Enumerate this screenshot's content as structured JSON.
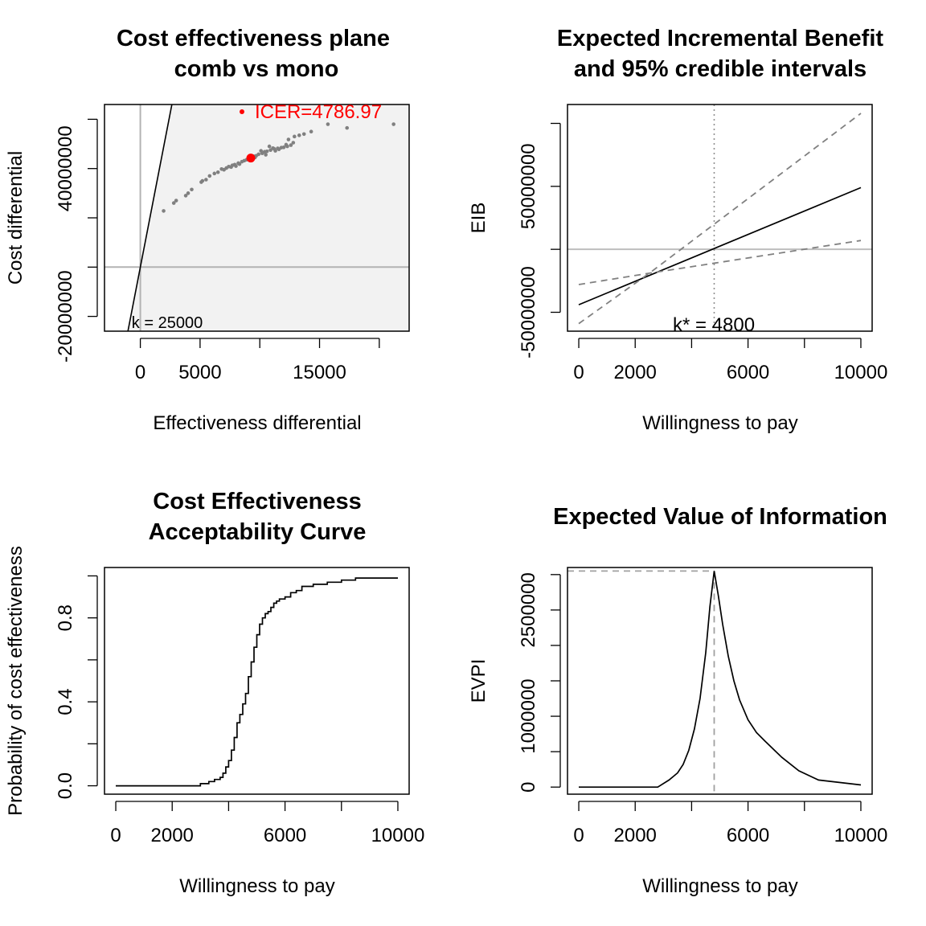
{
  "chart_data": [
    {
      "id": "ce_plane",
      "type": "scatter",
      "title": [
        "Cost effectiveness plane",
        "comb vs mono"
      ],
      "xlabel": "Effectiveness differential",
      "ylabel": "Cost differential",
      "xlim": [
        -3000,
        22500
      ],
      "ylim": [
        -26000000,
        66000000
      ],
      "xticks": [
        0,
        5000,
        15000
      ],
      "xticks_unlabeled": [
        10000,
        20000
      ],
      "yticks": [
        -20000000,
        40000000
      ],
      "yticks_unlabeled": [
        0,
        20000000,
        60000000
      ],
      "ytick_labels": [
        "-20000000",
        "40000000"
      ],
      "region_fill": "#f2f2f2",
      "point_color": "#808080",
      "icer_color": "#ff0000",
      "wtp_label": "k = 25000",
      "icer_label": "ICER=4786.97",
      "icer_point": {
        "x": 9246,
        "y": 44262000
      },
      "wtp_line": {
        "k": 25000
      },
      "points": [
        [
          1950,
          22800000
        ],
        [
          2800,
          26000000
        ],
        [
          3000,
          27000000
        ],
        [
          3800,
          29000000
        ],
        [
          4000,
          30000000
        ],
        [
          4300,
          31500000
        ],
        [
          5100,
          34500000
        ],
        [
          5200,
          35000000
        ],
        [
          5500,
          35500000
        ],
        [
          5800,
          37000000
        ],
        [
          6200,
          38000000
        ],
        [
          6500,
          38500000
        ],
        [
          7000,
          39500000
        ],
        [
          7400,
          40800000
        ],
        [
          7700,
          41300000
        ],
        [
          7900,
          41600000
        ],
        [
          8200,
          42200000
        ],
        [
          8500,
          42800000
        ],
        [
          8700,
          43200000
        ],
        [
          8900,
          43600000
        ],
        [
          9100,
          44000000
        ],
        [
          9300,
          44800000
        ],
        [
          9500,
          45000000
        ],
        [
          9700,
          45200000
        ],
        [
          9900,
          45800000
        ],
        [
          10200,
          46200000
        ],
        [
          10400,
          46800000
        ],
        [
          10600,
          47000000
        ],
        [
          10900,
          47500000
        ],
        [
          11200,
          48000000
        ],
        [
          11500,
          48200000
        ],
        [
          11800,
          48500000
        ],
        [
          12000,
          48600000
        ],
        [
          12300,
          49000000
        ],
        [
          12600,
          49500000
        ],
        [
          10800,
          49000000
        ],
        [
          11100,
          48300000
        ],
        [
          12200,
          49700000
        ],
        [
          12400,
          51800000
        ],
        [
          12900,
          53000000
        ],
        [
          13300,
          53500000
        ],
        [
          13700,
          54000000
        ],
        [
          14300,
          55000000
        ],
        [
          15700,
          58000000
        ],
        [
          17300,
          56500000
        ],
        [
          21200,
          58000000
        ],
        [
          6800,
          39800000
        ],
        [
          8000,
          41000000
        ],
        [
          9600,
          44500000
        ],
        [
          10100,
          47200000
        ],
        [
          11600,
          47800000
        ],
        [
          12800,
          50500000
        ],
        [
          9400,
          43900000
        ],
        [
          8300,
          41800000
        ],
        [
          7200,
          40200000
        ],
        [
          7600,
          40600000
        ],
        [
          10500,
          45600000
        ],
        [
          11300,
          47200000
        ]
      ]
    },
    {
      "id": "eib",
      "type": "line",
      "title": [
        "Expected Incremental Benefit",
        "and 95% credible intervals"
      ],
      "xlabel": "Willingness to pay",
      "ylabel": "EIB",
      "xlim": [
        -400,
        10400
      ],
      "ylim": [
        -65000000,
        115000000
      ],
      "xticks": [
        0,
        2000,
        6000,
        10000
      ],
      "xticks_unlabeled": [
        4000,
        8000
      ],
      "yticks": [
        -50000000,
        50000000
      ],
      "yticks_unlabeled": [
        0,
        100000000
      ],
      "ytick_labels": [
        "-50000000",
        "50000000"
      ],
      "kstar_x": 4800,
      "kstar_label": "k* = 4800",
      "series": [
        {
          "x": [
            0,
            10000
          ],
          "y": [
            -44000000,
            49000000
          ],
          "color": "#000000",
          "dash": false
        },
        {
          "x": [
            0,
            2500,
            10000
          ],
          "y": [
            -59000000,
            -19000000,
            108000000
          ],
          "color": "#808080",
          "dash": true
        },
        {
          "x": [
            0,
            2500,
            10000
          ],
          "y": [
            -28000000,
            -19000000,
            7000000
          ],
          "color": "#808080",
          "dash": true
        }
      ]
    },
    {
      "id": "ceac",
      "type": "line",
      "title": [
        "Cost Effectiveness",
        "Acceptability Curve"
      ],
      "xlabel": "Willingness to pay",
      "ylabel": "Probability of cost effectiveness",
      "xlim": [
        -400,
        10400
      ],
      "ylim": [
        -0.04,
        1.04
      ],
      "xticks": [
        0,
        2000,
        6000,
        10000
      ],
      "xticks_unlabeled": [
        4000,
        8000
      ],
      "yticks": [
        0,
        0.4,
        0.8
      ],
      "yticks_unlabeled": [
        0.2,
        0.6,
        1.0
      ],
      "ytick_labels": [
        "0.0",
        "0.4",
        "0.8"
      ],
      "series": [
        {
          "color": "#000000",
          "x": [
            0,
            2700,
            3000,
            3200,
            3300,
            3500,
            3700,
            3800,
            3900,
            4000,
            4100,
            4200,
            4300,
            4400,
            4500,
            4600,
            4700,
            4800,
            4900,
            5000,
            5100,
            5200,
            5300,
            5400,
            5500,
            5600,
            5700,
            5800,
            6000,
            6200,
            6400,
            6600,
            7000,
            7500,
            8000,
            8500,
            9000,
            10000
          ],
          "y": [
            0,
            0,
            0.01,
            0.01,
            0.02,
            0.03,
            0.04,
            0.06,
            0.09,
            0.12,
            0.17,
            0.23,
            0.3,
            0.34,
            0.39,
            0.44,
            0.52,
            0.59,
            0.66,
            0.72,
            0.77,
            0.8,
            0.82,
            0.83,
            0.85,
            0.87,
            0.88,
            0.89,
            0.9,
            0.92,
            0.93,
            0.95,
            0.96,
            0.97,
            0.98,
            0.99,
            0.99,
            0.99
          ]
        }
      ]
    },
    {
      "id": "evpi",
      "type": "line",
      "title": [
        "Expected Value of Information"
      ],
      "xlabel": "Willingness to pay",
      "ylabel": "EVPI",
      "xlim": [
        -400,
        10400
      ],
      "ylim": [
        -100000,
        3100000
      ],
      "xticks": [
        0,
        2000,
        6000,
        10000
      ],
      "xticks_unlabeled": [
        4000,
        8000
      ],
      "yticks": [
        0,
        1000000,
        2500000
      ],
      "yticks_unlabeled": [
        500000,
        1500000,
        2000000,
        3000000
      ],
      "ytick_labels": [
        "0",
        "1000000",
        "2500000"
      ],
      "peak": {
        "x": 4800,
        "y": 3050000
      },
      "series": [
        {
          "color": "#000000",
          "x": [
            0,
            2800,
            3200,
            3500,
            3700,
            3900,
            4100,
            4300,
            4500,
            4650,
            4800,
            4950,
            5100,
            5300,
            5500,
            5700,
            6000,
            6300,
            6600,
            7200,
            7800,
            8500,
            10000
          ],
          "y": [
            0,
            0,
            100000,
            200000,
            320000,
            520000,
            820000,
            1250000,
            1900000,
            2550000,
            3050000,
            2700000,
            2300000,
            1850000,
            1500000,
            1230000,
            950000,
            770000,
            650000,
            420000,
            230000,
            100000,
            30000
          ]
        }
      ]
    }
  ]
}
